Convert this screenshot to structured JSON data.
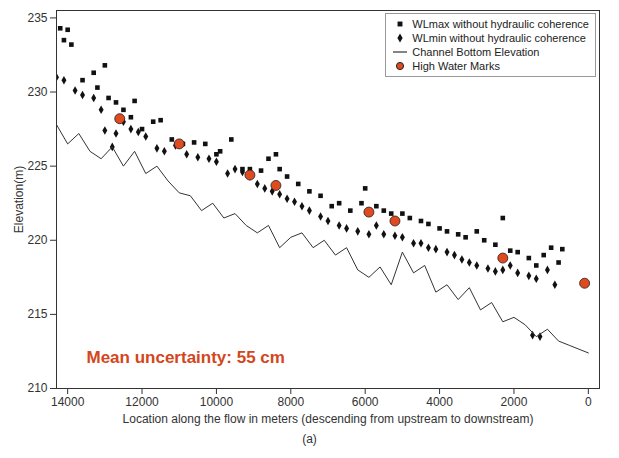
{
  "chart_data": {
    "type": "scatter",
    "xlabel": "Location along the flow in meters (descending from upstream to downstream)",
    "ylabel": "Elevation(m)",
    "caption": "(a)",
    "annotation": {
      "text": "Mean uncertainty: 55 cm",
      "color": "#d4461c"
    },
    "xlim": [
      14300,
      -300
    ],
    "xticks": [
      14000,
      12000,
      10000,
      8000,
      6000,
      4000,
      2000,
      0
    ],
    "ylim": [
      210,
      235.5
    ],
    "yticks": [
      210,
      215,
      220,
      225,
      230,
      235
    ],
    "grid": false,
    "legend": "upper right",
    "series": [
      {
        "name": "WLmax without hydraulic coherence",
        "type": "scatter",
        "marker": "square",
        "color": "#111111",
        "x": [
          14200,
          14100,
          14000,
          13900,
          13600,
          13300,
          13200,
          13000,
          12900,
          12700,
          12500,
          12300,
          12200,
          12000,
          11700,
          11500,
          11200,
          10900,
          10600,
          10300,
          10000,
          9900,
          9600,
          9300,
          9100,
          8800,
          8600,
          8400,
          8300,
          8100,
          7800,
          7500,
          7200,
          6900,
          6700,
          6400,
          6100,
          6000,
          5700,
          5500,
          5300,
          5000,
          4800,
          4500,
          4300,
          4000,
          3800,
          3500,
          3300,
          3000,
          2800,
          2500,
          2300,
          2100,
          1900,
          1600,
          1400,
          1200,
          1000,
          800,
          700
        ],
        "values": [
          234.3,
          233.5,
          234.2,
          233.2,
          230.8,
          231.3,
          230.3,
          231.8,
          229.6,
          229.3,
          228.8,
          228.3,
          229.4,
          227.5,
          228.0,
          228.1,
          226.8,
          226.5,
          226.6,
          226.5,
          225.8,
          226.0,
          226.8,
          224.8,
          224.8,
          224.7,
          225.5,
          225.8,
          224.8,
          224.3,
          223.8,
          223.3,
          223.0,
          222.3,
          222.5,
          222.0,
          222.5,
          223.5,
          222.3,
          222.0,
          221.8,
          221.8,
          221.5,
          221.3,
          221.1,
          220.8,
          220.6,
          220.4,
          220.2,
          220.6,
          220.0,
          219.7,
          221.5,
          219.3,
          219.2,
          218.8,
          218.3,
          219.0,
          219.5,
          218.5,
          219.4
        ]
      },
      {
        "name": "WLmin without hydraulic coherence",
        "type": "scatter",
        "marker": "diamond",
        "color": "#111111",
        "x": [
          14300,
          14100,
          13800,
          13600,
          13300,
          13100,
          13000,
          12800,
          12700,
          12500,
          12300,
          12100,
          11900,
          11600,
          11400,
          11100,
          10800,
          10500,
          10200,
          10000,
          9700,
          9500,
          9300,
          9100,
          8900,
          8700,
          8500,
          8300,
          8100,
          7900,
          7700,
          7500,
          7200,
          7000,
          6700,
          6500,
          6200,
          5900,
          5700,
          5500,
          5200,
          5000,
          4700,
          4500,
          4300,
          4100,
          3800,
          3600,
          3400,
          3200,
          3000,
          2700,
          2500,
          2300,
          2100,
          1900,
          1600,
          1500,
          1400,
          1300,
          1100,
          900
        ],
        "values": [
          231.0,
          230.8,
          230.1,
          229.8,
          229.6,
          228.8,
          227.4,
          226.3,
          227.2,
          228.0,
          227.5,
          227.3,
          227.0,
          226.2,
          226.0,
          226.4,
          225.8,
          225.6,
          225.5,
          225.3,
          224.5,
          224.8,
          224.6,
          224.3,
          223.8,
          223.5,
          223.3,
          223.1,
          222.8,
          222.6,
          222.3,
          222.0,
          221.6,
          221.3,
          221.0,
          220.8,
          220.6,
          220.4,
          221.0,
          220.4,
          220.3,
          220.2,
          219.8,
          219.8,
          219.5,
          219.4,
          219.2,
          219.0,
          218.7,
          218.5,
          218.3,
          218.1,
          217.9,
          218.0,
          218.3,
          217.8,
          217.6,
          213.6,
          217.4,
          213.5,
          218.0,
          217.0
        ]
      },
      {
        "name": "Channel Bottom Elevation",
        "type": "line",
        "line_style": "solid",
        "color": "#333333",
        "x": [
          14300,
          14000,
          13700,
          13400,
          13100,
          12800,
          12500,
          12200,
          11900,
          11600,
          11300,
          11000,
          10700,
          10400,
          10100,
          9800,
          9500,
          9200,
          8900,
          8600,
          8300,
          8000,
          7700,
          7400,
          7100,
          6800,
          6500,
          6200,
          5900,
          5600,
          5300,
          5000,
          4700,
          4400,
          4100,
          3800,
          3500,
          3200,
          2900,
          2600,
          2300,
          2000,
          1700,
          1400,
          1100,
          800,
          500,
          200,
          0
        ],
        "values": [
          227.8,
          226.5,
          227.2,
          226.0,
          225.5,
          226.3,
          225.0,
          226.0,
          224.5,
          225.0,
          224.0,
          223.2,
          223.0,
          222.0,
          222.5,
          221.5,
          221.8,
          221.0,
          220.5,
          221.0,
          219.5,
          220.2,
          220.5,
          219.5,
          220.0,
          219.0,
          219.5,
          218.0,
          217.5,
          218.2,
          217.0,
          219.2,
          217.8,
          218.3,
          216.5,
          217.0,
          216.0,
          216.8,
          215.3,
          215.8,
          214.5,
          214.8,
          214.3,
          213.5,
          214.0,
          213.2,
          212.9,
          212.6,
          212.4
        ]
      },
      {
        "name": "High Water Marks",
        "type": "scatter",
        "marker": "circle",
        "color": "#e04a1f",
        "x": [
          12600,
          11000,
          9100,
          8400,
          5900,
          5200,
          2300,
          100
        ],
        "values": [
          228.2,
          226.5,
          224.4,
          223.7,
          221.9,
          221.3,
          218.8,
          217.1
        ]
      }
    ]
  }
}
